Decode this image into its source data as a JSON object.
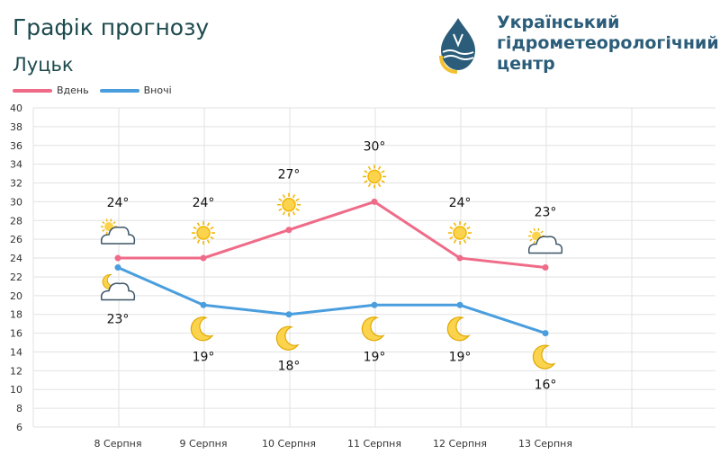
{
  "header": {
    "title": "Графік прогнозу",
    "city": "Луцьк",
    "org_lines": [
      "Український",
      "гідрометеорологічний",
      "центр"
    ]
  },
  "colors": {
    "day": "#ef6b88",
    "night": "#4a9ede",
    "grid": "#e2e2e2"
  },
  "chart_data": {
    "type": "line",
    "categories": [
      "8 Серпня",
      "9 Серпня",
      "10 Серпня",
      "11 Серпня",
      "12 Серпня",
      "13 Серпня"
    ],
    "series": [
      {
        "name": "Вдень",
        "values": [
          24,
          24,
          27,
          30,
          24,
          23
        ],
        "labels": [
          "24°",
          "24°",
          "27°",
          "30°",
          "24°",
          "23°"
        ],
        "icons": [
          "partly-cloudy-icon",
          "sun-icon",
          "sun-icon",
          "sun-icon",
          "sun-icon",
          "partly-cloudy-icon"
        ]
      },
      {
        "name": "Вночі",
        "values": [
          23,
          19,
          18,
          19,
          19,
          16
        ],
        "labels": [
          "23°",
          "19°",
          "18°",
          "19°",
          "19°",
          "16°"
        ],
        "icons": [
          "moon-cloud-icon",
          "moon-icon",
          "moon-icon",
          "moon-icon",
          "moon-icon",
          "moon-icon"
        ]
      }
    ],
    "ylim": [
      6,
      40
    ],
    "yticks": [
      "6",
      "8",
      "10",
      "12",
      "14",
      "16",
      "18",
      "20",
      "22",
      "24",
      "26",
      "28",
      "30",
      "32",
      "34",
      "36",
      "38",
      "40"
    ],
    "grid": true,
    "legend": "top-left"
  }
}
